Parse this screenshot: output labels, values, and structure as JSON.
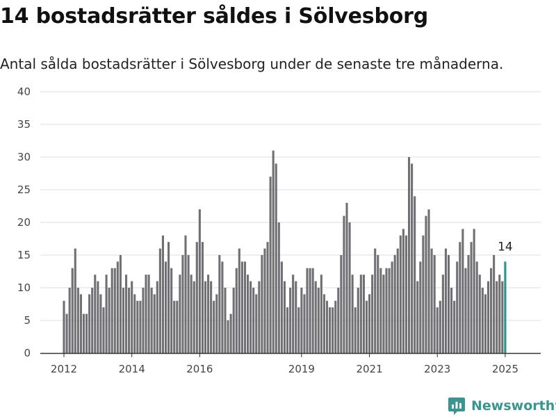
{
  "title": "14 bostadsrätter såldes i Sölvesborg",
  "subtitle": "Antal sålda bostadsrätter i Sölvesborg under de senaste tre månaderna.",
  "brand": {
    "name": "Newsworthy",
    "color": "#3a9590"
  },
  "colors": {
    "bar": "#706f74",
    "highlight": "#22968d",
    "grid": "#dddddd",
    "axis": "#333333"
  },
  "chart_data": {
    "type": "bar",
    "x_start": "2012-01",
    "x_end": "2025-01",
    "values": [
      8,
      6,
      10,
      13,
      16,
      10,
      9,
      6,
      6,
      9,
      10,
      12,
      11,
      9,
      7,
      12,
      10,
      13,
      13,
      14,
      15,
      10,
      12,
      10,
      11,
      9,
      8,
      8,
      10,
      12,
      12,
      10,
      9,
      11,
      16,
      18,
      14,
      17,
      13,
      8,
      8,
      12,
      15,
      18,
      15,
      12,
      11,
      17,
      22,
      17,
      11,
      12,
      11,
      8,
      9,
      15,
      14,
      10,
      5,
      6,
      10,
      13,
      16,
      14,
      14,
      12,
      11,
      10,
      9,
      11,
      15,
      16,
      17,
      27,
      31,
      29,
      20,
      14,
      11,
      7,
      10,
      12,
      11,
      7,
      10,
      9,
      13,
      13,
      13,
      11,
      10,
      12,
      9,
      8,
      7,
      7,
      8,
      10,
      15,
      21,
      23,
      20,
      12,
      7,
      10,
      12,
      12,
      8,
      9,
      12,
      16,
      15,
      13,
      12,
      13,
      13,
      14,
      15,
      16,
      18,
      19,
      18,
      30,
      29,
      24,
      11,
      14,
      18,
      21,
      22,
      16,
      15,
      7,
      8,
      12,
      16,
      15,
      10,
      8,
      14,
      17,
      19,
      13,
      15,
      17,
      19,
      14,
      12,
      10,
      9,
      11,
      13,
      15,
      11,
      12,
      11,
      14
    ],
    "highlight_last": true,
    "highlight_label": "14",
    "ylim": [
      0,
      40
    ],
    "yticks": [
      0,
      5,
      10,
      15,
      20,
      25,
      30,
      35,
      40
    ],
    "xticks": [
      {
        "label": "2012",
        "index": 0
      },
      {
        "label": "2014",
        "index": 24
      },
      {
        "label": "2016",
        "index": 48
      },
      {
        "label": "2019",
        "index": 84
      },
      {
        "label": "2021",
        "index": 108
      },
      {
        "label": "2023",
        "index": 132
      },
      {
        "label": "2025",
        "index": 156
      }
    ],
    "grid": true,
    "xlabel": "",
    "ylabel": ""
  }
}
